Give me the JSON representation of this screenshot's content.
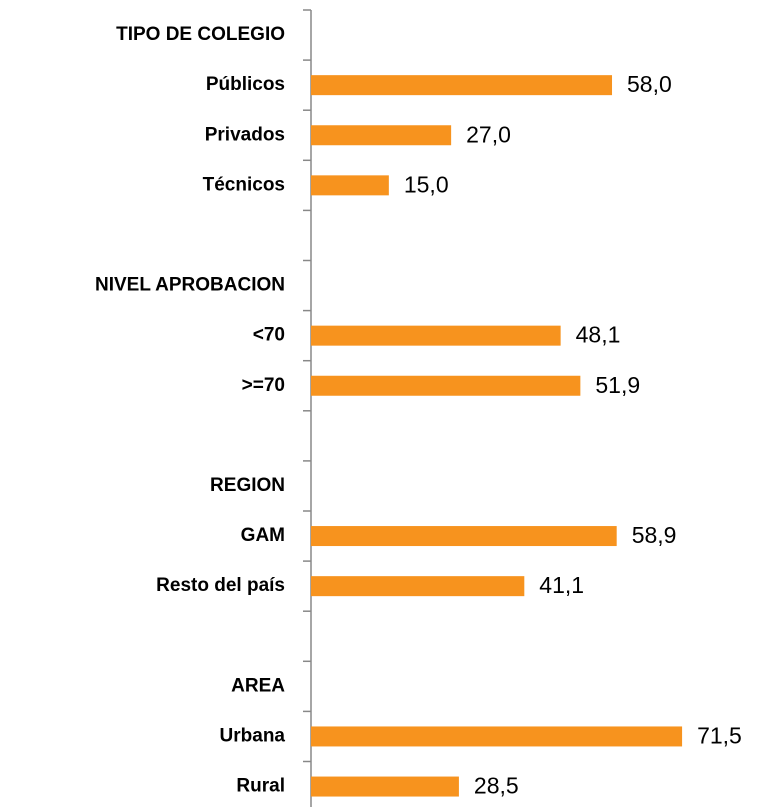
{
  "chart_data": {
    "type": "bar",
    "orientation": "horizontal",
    "categories": [
      "TIPO DE COLEGIO",
      "Públicos",
      "Privados",
      "Técnicos",
      null,
      "NIVEL APROBACION",
      "<70",
      ">=70",
      null,
      "REGION",
      "GAM",
      "Resto del país",
      null,
      "AREA",
      "Urbana",
      "Rural"
    ],
    "values": [
      null,
      58.0,
      27.0,
      15.0,
      null,
      null,
      48.1,
      51.9,
      null,
      null,
      58.9,
      41.1,
      null,
      null,
      71.5,
      28.5
    ],
    "value_labels": [
      null,
      "58,0",
      "27,0",
      "15,0",
      null,
      null,
      "48,1",
      "51,9",
      null,
      null,
      "58,9",
      "41,1",
      null,
      null,
      "71,5",
      "28,5"
    ],
    "color": "#f7931e"
  }
}
